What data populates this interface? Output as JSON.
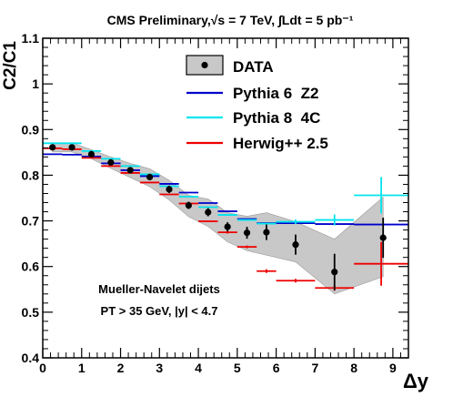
{
  "chart_data": {
    "type": "scatter",
    "title": "CMS Preliminary,√s = 7 TeV, ∫Ldt = 5 pb⁻¹",
    "xlabel": "Δy",
    "ylabel": "C2/C1",
    "xlim": [
      0,
      9.4
    ],
    "ylim": [
      0.4,
      1.1
    ],
    "x_ticks": [
      0,
      1,
      2,
      3,
      4,
      5,
      6,
      7,
      8,
      9
    ],
    "y_ticks": [
      0.4,
      0.5,
      0.6,
      0.7,
      0.8,
      0.9,
      1,
      1.1
    ],
    "y_tick_labels": [
      "0.4",
      "0.5",
      "0.6",
      "0.7",
      "0.8",
      "0.9",
      "1",
      "1.1"
    ],
    "grid": false,
    "legend_placement": "top-right",
    "annotations": [
      "Mueller-Navelet dijets",
      "PT > 35 GeV, |y| < 4.7"
    ],
    "series": [
      {
        "name": "DATA",
        "kind": "points_with_band",
        "color": "#000000",
        "band_color": "#c8c8c8",
        "x": [
          0.25,
          0.75,
          1.25,
          1.75,
          2.25,
          2.75,
          3.25,
          3.75,
          4.25,
          4.75,
          5.25,
          5.75,
          6.5,
          7.5,
          8.75
        ],
        "y": [
          0.861,
          0.861,
          0.846,
          0.828,
          0.811,
          0.796,
          0.769,
          0.734,
          0.719,
          0.687,
          0.674,
          0.675,
          0.648,
          0.588,
          0.663
        ],
        "stat_err": [
          0.006,
          0.006,
          0.006,
          0.006,
          0.006,
          0.007,
          0.008,
          0.008,
          0.009,
          0.01,
          0.013,
          0.017,
          0.022,
          0.04,
          0.044
        ],
        "band_lo": [
          0.851,
          0.851,
          0.836,
          0.815,
          0.795,
          0.775,
          0.746,
          0.709,
          0.688,
          0.654,
          0.635,
          0.625,
          0.61,
          0.54,
          0.578
        ],
        "band_hi": [
          0.871,
          0.871,
          0.856,
          0.84,
          0.826,
          0.814,
          0.789,
          0.756,
          0.748,
          0.718,
          0.71,
          0.718,
          0.698,
          0.66,
          0.752
        ]
      },
      {
        "name": "Pythia 6  Z2",
        "kind": "step",
        "color": "#0000cc",
        "bins": [
          [
            0,
            0.5
          ],
          [
            0.5,
            1
          ],
          [
            1,
            1.5
          ],
          [
            1.5,
            2
          ],
          [
            2,
            2.5
          ],
          [
            2.5,
            3
          ],
          [
            3,
            3.5
          ],
          [
            3.5,
            4
          ],
          [
            4,
            4.5
          ],
          [
            4.5,
            5
          ],
          [
            5,
            5.5
          ],
          [
            5.5,
            6
          ],
          [
            6,
            7
          ],
          [
            7,
            8
          ],
          [
            8,
            9.4
          ]
        ],
        "values": [
          0.846,
          0.845,
          0.841,
          0.826,
          0.811,
          0.798,
          0.781,
          0.762,
          0.739,
          0.721,
          0.704,
          0.695,
          0.695,
          0.693,
          0.692
        ],
        "errors": [
          0,
          0,
          0,
          0,
          0,
          0,
          0,
          0,
          0,
          0,
          0,
          0,
          0,
          0,
          0
        ]
      },
      {
        "name": "Pythia 8  4C",
        "kind": "step",
        "color": "#00e5ee",
        "bins": [
          [
            0,
            0.5
          ],
          [
            0.5,
            1
          ],
          [
            1,
            1.5
          ],
          [
            1.5,
            2
          ],
          [
            2,
            2.5
          ],
          [
            2.5,
            3
          ],
          [
            3,
            3.5
          ],
          [
            3.5,
            4
          ],
          [
            4,
            4.5
          ],
          [
            4.5,
            5
          ],
          [
            5,
            5.5
          ],
          [
            5.5,
            6
          ],
          [
            6,
            7
          ],
          [
            7,
            8
          ],
          [
            8,
            9.4
          ]
        ],
        "values": [
          0.87,
          0.87,
          0.853,
          0.836,
          0.82,
          0.802,
          0.776,
          0.753,
          0.73,
          0.713,
          0.702,
          0.694,
          0.698,
          0.702,
          0.756
        ],
        "errors": [
          0,
          0,
          0,
          0,
          0,
          0,
          0,
          0,
          0,
          0,
          0,
          0,
          0.005,
          0.012,
          0.04
        ]
      },
      {
        "name": "Herwig++ 2.5",
        "kind": "step",
        "color": "#ee0000",
        "bins": [
          [
            0,
            0.5
          ],
          [
            0.5,
            1
          ],
          [
            1,
            1.5
          ],
          [
            1.5,
            2
          ],
          [
            2,
            2.5
          ],
          [
            2.5,
            3
          ],
          [
            3,
            3.5
          ],
          [
            3.5,
            4
          ],
          [
            4,
            4.5
          ],
          [
            4.5,
            5
          ],
          [
            5,
            5.5
          ],
          [
            5.5,
            6
          ],
          [
            6,
            7
          ],
          [
            7,
            8
          ],
          [
            8,
            9.4
          ]
        ],
        "values": [
          0.859,
          0.857,
          0.838,
          0.82,
          0.805,
          0.784,
          0.758,
          0.738,
          0.699,
          0.675,
          0.643,
          0.59,
          0.569,
          0.553,
          0.606
        ],
        "errors": [
          0,
          0,
          0,
          0,
          0,
          0,
          0,
          0,
          0,
          0.003,
          0.003,
          0.004,
          0.004,
          0.006,
          0.048
        ]
      }
    ]
  }
}
